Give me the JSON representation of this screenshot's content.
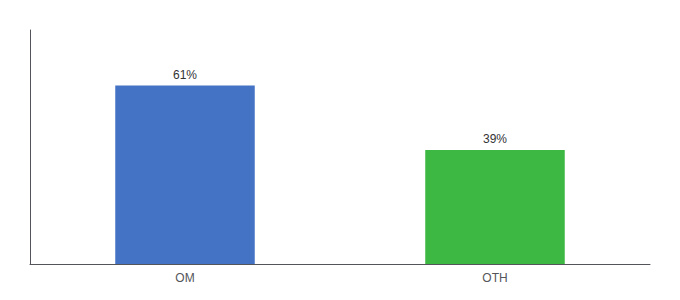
{
  "chart_data": {
    "type": "bar",
    "categories": [
      "OM",
      "OTH"
    ],
    "values": [
      61,
      39
    ],
    "value_labels": [
      "61%",
      "39%"
    ],
    "colors": [
      "#4472C4",
      "#3CB843"
    ],
    "ylim": [
      0,
      80
    ],
    "data_labels": true,
    "tick_labels": "x",
    "grid": false
  }
}
